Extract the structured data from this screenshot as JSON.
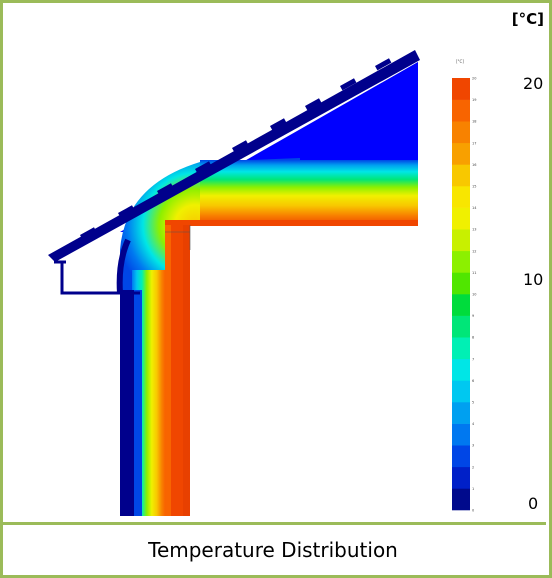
{
  "figure": {
    "caption": "Temperature Distribution",
    "unit_label": "[°C]"
  },
  "colorbar": {
    "min": 0,
    "max": 20,
    "tick_labels": [
      "20",
      "10",
      "0"
    ],
    "small_unit_label": "[°C]",
    "small_ticks": [
      "20",
      "19",
      "18",
      "17",
      "16",
      "15",
      "14",
      "13",
      "12",
      "11",
      "10",
      "9",
      "8",
      "7",
      "6",
      "5",
      "4",
      "3",
      "2",
      "1",
      "0"
    ],
    "colors": [
      "#000a8c",
      "#0020c8",
      "#0046e6",
      "#0078f0",
      "#00a0f0",
      "#00c8f0",
      "#00e6e6",
      "#00f0b4",
      "#00e678",
      "#00dc3c",
      "#50e600",
      "#8cf000",
      "#c8f000",
      "#f0f000",
      "#f8e600",
      "#f8c800",
      "#f8a000",
      "#f88200",
      "#f86400",
      "#f04600"
    ]
  },
  "colors": {
    "frame": "#9bbb59",
    "roof_cold": "#0000ff",
    "structure": "#00008c",
    "warm": "#f04600"
  }
}
